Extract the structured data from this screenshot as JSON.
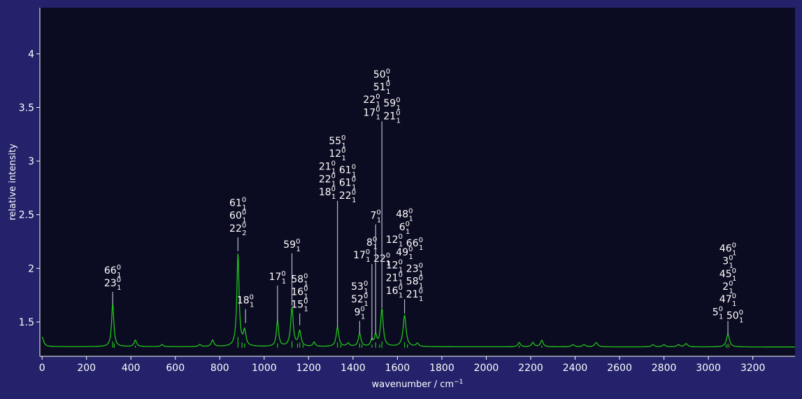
{
  "colors": {
    "background": "#23226b",
    "plot_background": "#0b0b22",
    "spectrum": "#22c41a",
    "stick": "#22c41a",
    "stick_red": "#d02020",
    "annotation_line": "#b8b8cc",
    "text": "#ffffff"
  },
  "chart_data": {
    "type": "line",
    "xlabel": "wavenumber / cm",
    "xlabel_sup": "−1",
    "ylabel": "relative intensity",
    "xlim": [
      -10,
      3390
    ],
    "ylim": [
      1.18,
      4.43
    ],
    "xticks": [
      0,
      200,
      400,
      600,
      800,
      1000,
      1200,
      1400,
      1600,
      1800,
      2000,
      2200,
      2400,
      2600,
      2800,
      3000,
      3200
    ],
    "yticks": [
      1.5,
      2,
      2.5,
      3,
      3.5,
      4
    ],
    "ytick_labels": [
      "1.5",
      "2",
      "2.5",
      "3",
      "3.5",
      "4"
    ],
    "grid": false,
    "baseline": 1.27,
    "peaks": [
      {
        "x": 0,
        "h": 0.09,
        "w": 8
      },
      {
        "x": 318,
        "h": 0.4,
        "w": 6
      },
      {
        "x": 420,
        "h": 0.06,
        "w": 7
      },
      {
        "x": 540,
        "h": 0.02,
        "w": 6
      },
      {
        "x": 710,
        "h": 0.02,
        "w": 6
      },
      {
        "x": 768,
        "h": 0.06,
        "w": 7
      },
      {
        "x": 882,
        "h": 0.86,
        "w": 6
      },
      {
        "x": 912,
        "h": 0.14,
        "w": 7
      },
      {
        "x": 1060,
        "h": 0.24,
        "w": 6
      },
      {
        "x": 1125,
        "h": 0.36,
        "w": 7
      },
      {
        "x": 1160,
        "h": 0.14,
        "w": 7
      },
      {
        "x": 1225,
        "h": 0.04,
        "w": 6
      },
      {
        "x": 1330,
        "h": 0.18,
        "w": 7
      },
      {
        "x": 1378,
        "h": 0.03,
        "w": 7
      },
      {
        "x": 1430,
        "h": 0.12,
        "w": 7
      },
      {
        "x": 1485,
        "h": 0.06,
        "w": 6
      },
      {
        "x": 1502,
        "h": 0.1,
        "w": 6
      },
      {
        "x": 1530,
        "h": 0.35,
        "w": 7
      },
      {
        "x": 1632,
        "h": 0.29,
        "w": 8
      },
      {
        "x": 1690,
        "h": 0.03,
        "w": 7
      },
      {
        "x": 2148,
        "h": 0.04,
        "w": 7
      },
      {
        "x": 2210,
        "h": 0.04,
        "w": 7
      },
      {
        "x": 2250,
        "h": 0.06,
        "w": 7
      },
      {
        "x": 2390,
        "h": 0.02,
        "w": 8
      },
      {
        "x": 2440,
        "h": 0.02,
        "w": 8
      },
      {
        "x": 2495,
        "h": 0.04,
        "w": 8
      },
      {
        "x": 2750,
        "h": 0.02,
        "w": 8
      },
      {
        "x": 2800,
        "h": 0.02,
        "w": 8
      },
      {
        "x": 2865,
        "h": 0.02,
        "w": 8
      },
      {
        "x": 2900,
        "h": 0.03,
        "w": 8
      },
      {
        "x": 3088,
        "h": 0.12,
        "w": 8
      }
    ],
    "sticks": [
      {
        "x": 318,
        "h": 0.06
      },
      {
        "x": 325,
        "h": 0.04
      },
      {
        "x": 420,
        "h": 0.02
      },
      {
        "x": 882,
        "h": 0.1
      },
      {
        "x": 900,
        "h": 0.05
      },
      {
        "x": 912,
        "h": 0.04
      },
      {
        "x": 1060,
        "h": 0.04
      },
      {
        "x": 1125,
        "h": 0.06
      },
      {
        "x": 1150,
        "h": 0.04
      },
      {
        "x": 1160,
        "h": 0.05
      },
      {
        "x": 1175,
        "h": 0.03
      },
      {
        "x": 1330,
        "h": 0.05
      },
      {
        "x": 1345,
        "h": 0.03
      },
      {
        "x": 1430,
        "h": 0.04
      },
      {
        "x": 1440,
        "h": 0.03
      },
      {
        "x": 1485,
        "h": 0.03
      },
      {
        "x": 1502,
        "h": 0.05
      },
      {
        "x": 1520,
        "h": 0.03
      },
      {
        "x": 1530,
        "h": 0.06
      },
      {
        "x": 1632,
        "h": 0.05
      },
      {
        "x": 1645,
        "h": 0.03
      },
      {
        "x": 2148,
        "h": 0.02
      },
      {
        "x": 2250,
        "h": 0.02
      },
      {
        "x": 3080,
        "h": 0.03
      },
      {
        "x": 3088,
        "h": 0.04
      }
    ],
    "red_sticks": [
      {
        "x": 3095,
        "h": 0.03
      }
    ],
    "annotations": [
      {
        "x": 318,
        "line_y0": 1.66,
        "line_y1": 1.78,
        "lines": [
          [
            [
              "66",
              "0",
              "1"
            ]
          ],
          [
            [
              "23",
              "0",
              "1"
            ]
          ]
        ]
      },
      {
        "x": 882,
        "line_y0": 2.16,
        "line_y1": 2.29,
        "lines": [
          [
            [
              "61",
              "0",
              "1"
            ]
          ],
          [
            [
              "60",
              "0",
              "1"
            ]
          ],
          [
            [
              "22",
              "0",
              "2"
            ]
          ]
        ]
      },
      {
        "x": 916,
        "line_y0": 1.49,
        "line_y1": 1.62,
        "lines": [
          [
            [
              "18",
              "0",
              "1"
            ]
          ]
        ]
      },
      {
        "x": 1060,
        "line_y0": 1.51,
        "line_y1": 1.84,
        "lines": [
          [
            [
              "17",
              "0",
              "1"
            ]
          ]
        ]
      },
      {
        "x": 1125,
        "line_y0": 1.65,
        "line_y1": 2.14,
        "lines": [
          [
            [
              "59",
              "0",
              "1"
            ]
          ]
        ]
      },
      {
        "x": 1160,
        "line_y0": 1.47,
        "line_y1": 1.58,
        "lines": [
          [
            [
              "58",
              "0",
              "1"
            ]
          ],
          [
            [
              "16",
              "0",
              "1"
            ]
          ],
          [
            [
              "15",
              "0",
              "1"
            ]
          ]
        ]
      },
      {
        "x": 1330,
        "line_y0": 1.45,
        "line_y1": 2.63,
        "lines": [
          [
            [
              "55",
              "0",
              "1"
            ]
          ],
          [
            [
              "12",
              "0",
              "1"
            ]
          ],
          [
            [
              "21",
              "0",
              "1"
            ],
            [
              "61",
              "0",
              "1"
            ]
          ],
          [
            [
              "22",
              "0",
              "1"
            ],
            [
              "61",
              "0",
              "1"
            ]
          ],
          [
            [
              "18",
              "0",
              "1"
            ],
            [
              "22",
              "0",
              "1"
            ]
          ]
        ]
      },
      {
        "x": 1430,
        "line_y0": 1.39,
        "line_y1": 1.51,
        "lines": [
          [
            [
              "53",
              "0",
              "1"
            ]
          ],
          [
            [
              "52",
              "0",
              "1"
            ]
          ],
          [
            [
              "9",
              "0",
              "1"
            ]
          ]
        ]
      },
      {
        "x": 1485,
        "line_y0": 1.33,
        "line_y1": 2.04,
        "lines": [
          [
            [
              "8",
              "0",
              "1"
            ]
          ],
          [
            [
              "17",
              "0",
              "1"
            ],
            [
              "22",
              "0",
              "1"
            ]
          ]
        ]
      },
      {
        "x": 1502,
        "line_y0": 1.39,
        "line_y1": 2.41,
        "lines": [
          [
            [
              "7",
              "0",
              "1"
            ]
          ]
        ]
      },
      {
        "x": 1530,
        "line_y0": 1.63,
        "line_y1": 3.37,
        "lines": [
          [
            [
              "50",
              "0",
              "1"
            ]
          ],
          [
            [
              "51",
              "0",
              "1"
            ]
          ],
          [
            [
              "22",
              "0",
              "1"
            ],
            [
              "59",
              "0",
              "1"
            ]
          ],
          [
            [
              "17",
              "0",
              "1"
            ],
            [
              "21",
              "0",
              "1"
            ]
          ]
        ]
      },
      {
        "x": 1632,
        "line_y0": 1.58,
        "line_y1": 1.71,
        "lines": [
          [
            [
              "48",
              "0",
              "1"
            ]
          ],
          [
            [
              "6",
              "0",
              "1"
            ]
          ],
          [
            [
              "12",
              "0",
              "1"
            ],
            [
              "66",
              "0",
              "1"
            ]
          ],
          [
            [
              "49",
              "0",
              "1"
            ]
          ],
          [
            [
              "12",
              "0",
              "1"
            ],
            [
              "23",
              "0",
              "1"
            ]
          ],
          [
            [
              "21",
              "0",
              "1"
            ],
            [
              "58",
              "0",
              "1"
            ]
          ],
          [
            [
              "16",
              "0",
              "1"
            ],
            [
              "21",
              "0",
              "1"
            ]
          ]
        ]
      },
      {
        "x": 3088,
        "line_y0": 1.38,
        "line_y1": 1.51,
        "lines": [
          [
            [
              "46",
              "0",
              "1"
            ]
          ],
          [
            [
              "3",
              "0",
              "1"
            ]
          ],
          [
            [
              "45",
              "0",
              "1"
            ]
          ],
          [
            [
              "2",
              "0",
              "1"
            ]
          ],
          [
            [
              "47",
              "0",
              "1"
            ]
          ],
          [
            [
              "5",
              "0",
              "1"
            ],
            [
              "50",
              "0",
              "1"
            ]
          ]
        ]
      }
    ]
  }
}
